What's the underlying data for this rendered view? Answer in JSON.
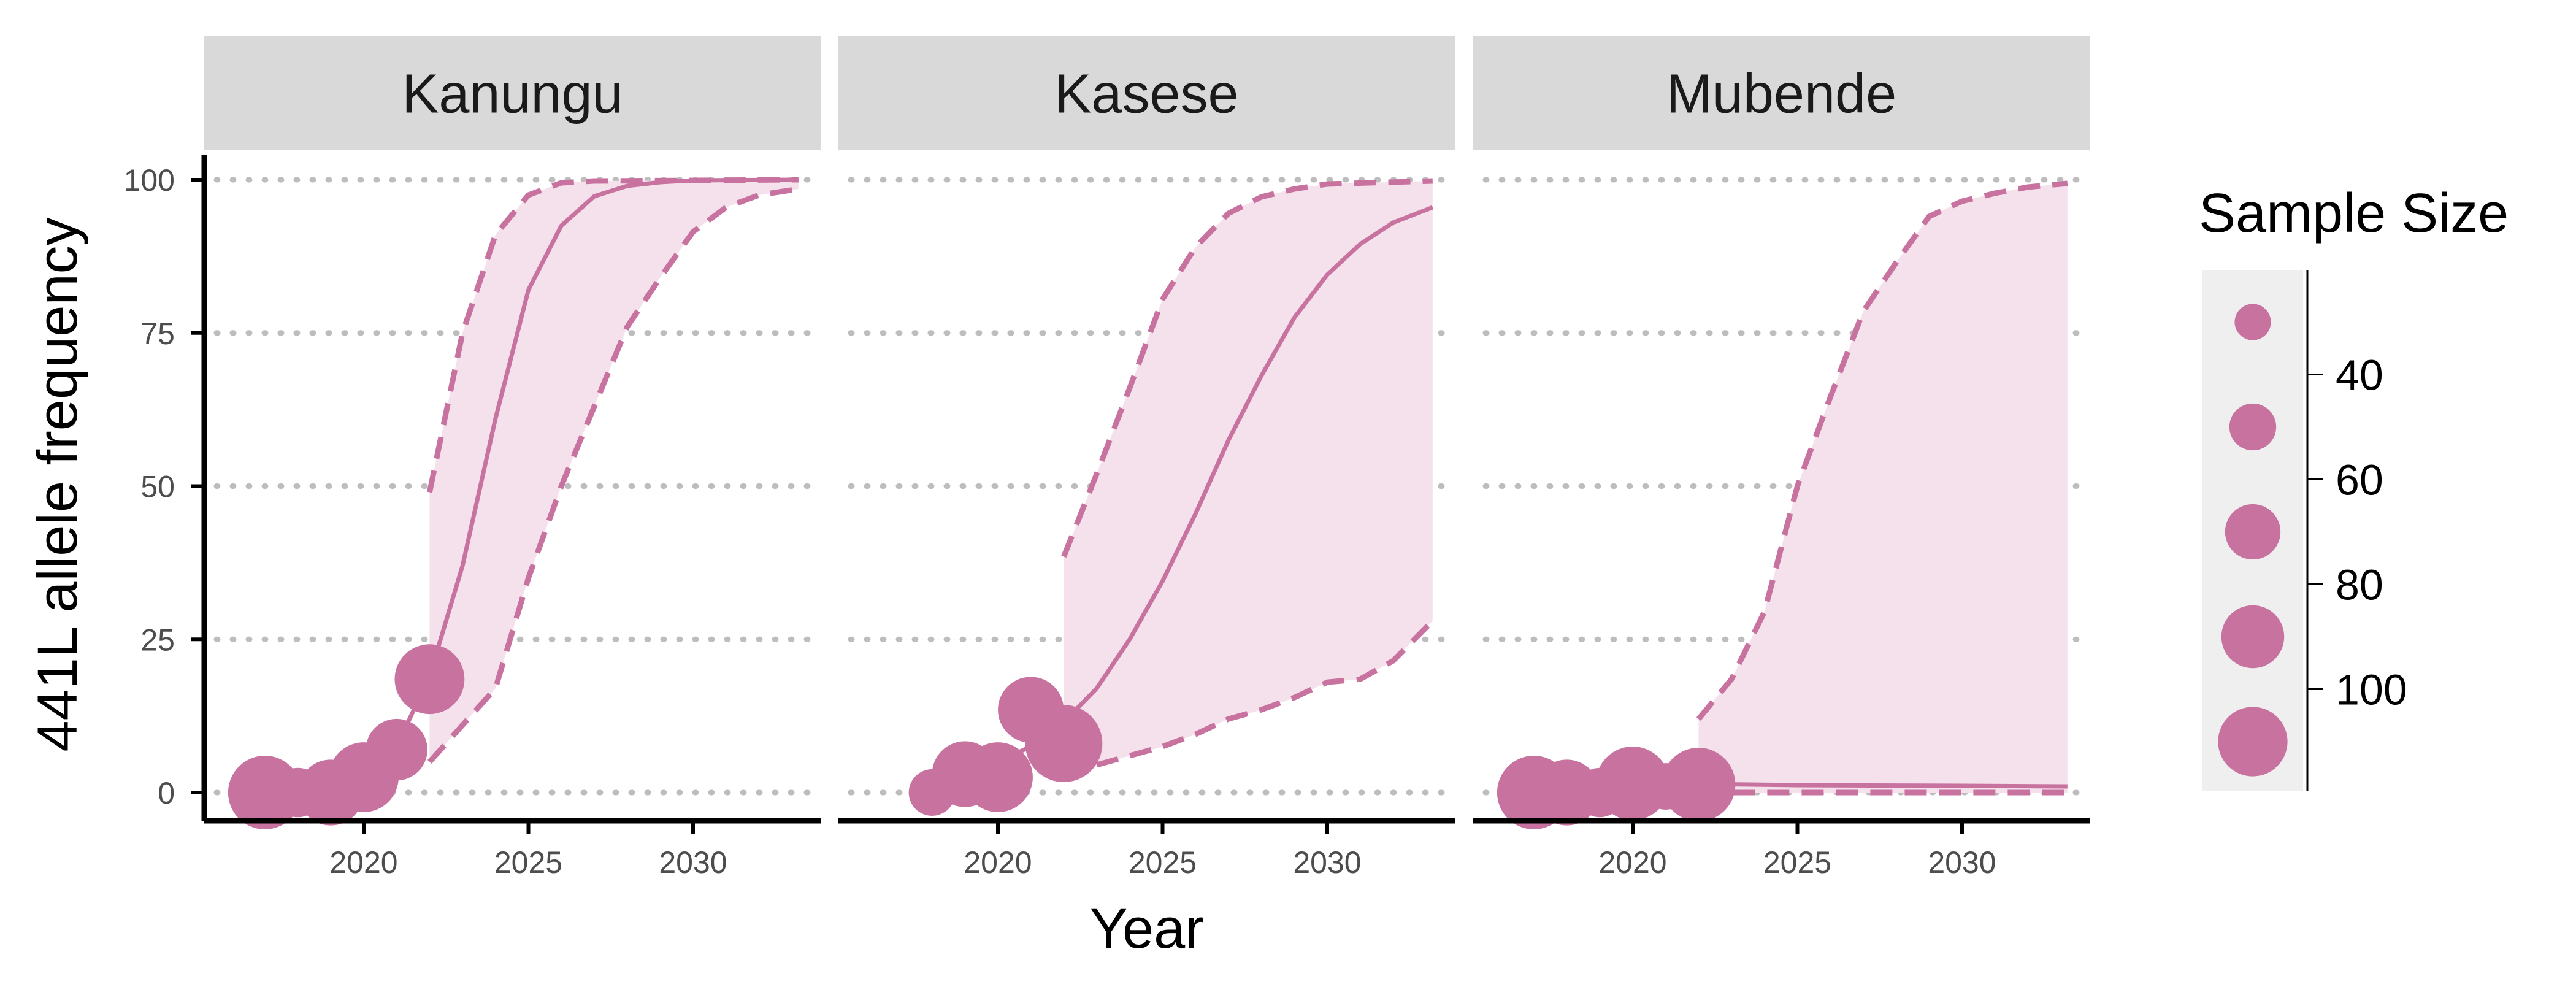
{
  "colors": {
    "series": "#c8739f",
    "band": "#f4e1ec",
    "strip": "#d9d9d9",
    "legend_bg": "#efefef"
  },
  "chart_data": {
    "type": "line",
    "xlabel": "Year",
    "ylabel": "441L allele frequency",
    "xlim": [
      2016,
      2033.5
    ],
    "ylim": [
      0,
      100
    ],
    "x_ticks": [
      2020,
      2025,
      2030
    ],
    "y_ticks": [
      0,
      25,
      50,
      75,
      100
    ],
    "grid": "horizontal dotted",
    "legend": {
      "title": "Sample Size",
      "placement": "right",
      "labels": [
        "40",
        "60",
        "80",
        "100"
      ],
      "tick_values": [
        40,
        60,
        80,
        100
      ],
      "key_values": [
        30,
        50,
        70,
        90,
        110
      ]
    },
    "panels": [
      {
        "name": "Kanungu",
        "points": [
          {
            "x": 2017,
            "y": 0,
            "n": 100
          },
          {
            "x": 2018,
            "y": 0,
            "n": 45
          },
          {
            "x": 2019,
            "y": 0,
            "n": 80
          },
          {
            "x": 2020,
            "y": 2.5,
            "n": 90
          },
          {
            "x": 2021,
            "y": 7,
            "n": 70
          },
          {
            "x": 2022,
            "y": 18.5,
            "n": 90
          }
        ],
        "median": [
          [
            2019,
            0.3
          ],
          [
            2020,
            2.2
          ],
          [
            2021,
            7.5
          ],
          [
            2022,
            19
          ],
          [
            2023,
            37
          ],
          [
            2024,
            61
          ],
          [
            2025,
            82
          ],
          [
            2026,
            92.5
          ],
          [
            2027,
            97.3
          ],
          [
            2028,
            99
          ],
          [
            2029,
            99.6
          ],
          [
            2030,
            99.9
          ],
          [
            2033.2,
            100
          ]
        ],
        "lower": [
          [
            2022,
            5
          ],
          [
            2023,
            11
          ],
          [
            2024,
            17
          ],
          [
            2025,
            35
          ],
          [
            2026,
            50
          ],
          [
            2027,
            63
          ],
          [
            2028,
            76
          ],
          [
            2029,
            84
          ],
          [
            2030,
            91.5
          ],
          [
            2031,
            95.5
          ],
          [
            2032,
            97.5
          ],
          [
            2033.2,
            98.5
          ]
        ],
        "upper": [
          [
            2022,
            49
          ],
          [
            2023,
            75
          ],
          [
            2024,
            91
          ],
          [
            2025,
            97.5
          ],
          [
            2026,
            99.5
          ],
          [
            2027,
            99.8
          ],
          [
            2033.2,
            100
          ]
        ]
      },
      {
        "name": "Kasese",
        "points": [
          {
            "x": 2018,
            "y": 0,
            "n": 40
          },
          {
            "x": 2019,
            "y": 3,
            "n": 80
          },
          {
            "x": 2020,
            "y": 2.5,
            "n": 90
          },
          {
            "x": 2021,
            "y": 13.5,
            "n": 80
          },
          {
            "x": 2022,
            "y": 8,
            "n": 110
          }
        ],
        "median": [
          [
            2019,
            3.5
          ],
          [
            2020,
            5
          ],
          [
            2021,
            7.5
          ],
          [
            2022,
            11.5
          ],
          [
            2023,
            17
          ],
          [
            2024,
            25
          ],
          [
            2025,
            34.5
          ],
          [
            2026,
            45.5
          ],
          [
            2027,
            57.5
          ],
          [
            2028,
            68
          ],
          [
            2029,
            77.5
          ],
          [
            2030,
            84.5
          ],
          [
            2031,
            89.5
          ],
          [
            2032,
            93
          ],
          [
            2033.2,
            95.5
          ]
        ],
        "lower": [
          [
            2022,
            3
          ],
          [
            2023,
            4.5
          ],
          [
            2024,
            6
          ],
          [
            2025,
            7.5
          ],
          [
            2026,
            9.5
          ],
          [
            2027,
            12
          ],
          [
            2028,
            13.5
          ],
          [
            2029,
            15.5
          ],
          [
            2030,
            18
          ],
          [
            2031,
            18.5
          ],
          [
            2032,
            21.5
          ],
          [
            2033.2,
            28
          ]
        ],
        "upper": [
          [
            2022,
            38.5
          ],
          [
            2023,
            52
          ],
          [
            2024,
            66
          ],
          [
            2025,
            80.5
          ],
          [
            2026,
            89
          ],
          [
            2027,
            94.5
          ],
          [
            2028,
            97.2
          ],
          [
            2029,
            98.5
          ],
          [
            2030,
            99.3
          ],
          [
            2033.2,
            99.8
          ]
        ]
      },
      {
        "name": "Mubende",
        "points": [
          {
            "x": 2017,
            "y": 0,
            "n": 100
          },
          {
            "x": 2018,
            "y": 0,
            "n": 80
          },
          {
            "x": 2019,
            "y": 0,
            "n": 45
          },
          {
            "x": 2020,
            "y": 1.5,
            "n": 100
          },
          {
            "x": 2021,
            "y": 1,
            "n": 40
          },
          {
            "x": 2022,
            "y": 1.3,
            "n": 100
          }
        ],
        "median": [
          [
            2022,
            1.4
          ],
          [
            2025,
            1.2
          ],
          [
            2030,
            1.1
          ],
          [
            2033.2,
            1.0
          ]
        ],
        "lower": [
          [
            2022,
            0
          ],
          [
            2033.2,
            0
          ]
        ],
        "upper": [
          [
            2022,
            12
          ],
          [
            2023,
            18.5
          ],
          [
            2024,
            29.5
          ],
          [
            2025,
            50
          ],
          [
            2026,
            64.5
          ],
          [
            2027,
            78.5
          ],
          [
            2028,
            86.5
          ],
          [
            2029,
            94
          ],
          [
            2030,
            96.5
          ],
          [
            2031,
            97.8
          ],
          [
            2032,
            98.8
          ],
          [
            2033.2,
            99.4
          ]
        ]
      }
    ]
  }
}
